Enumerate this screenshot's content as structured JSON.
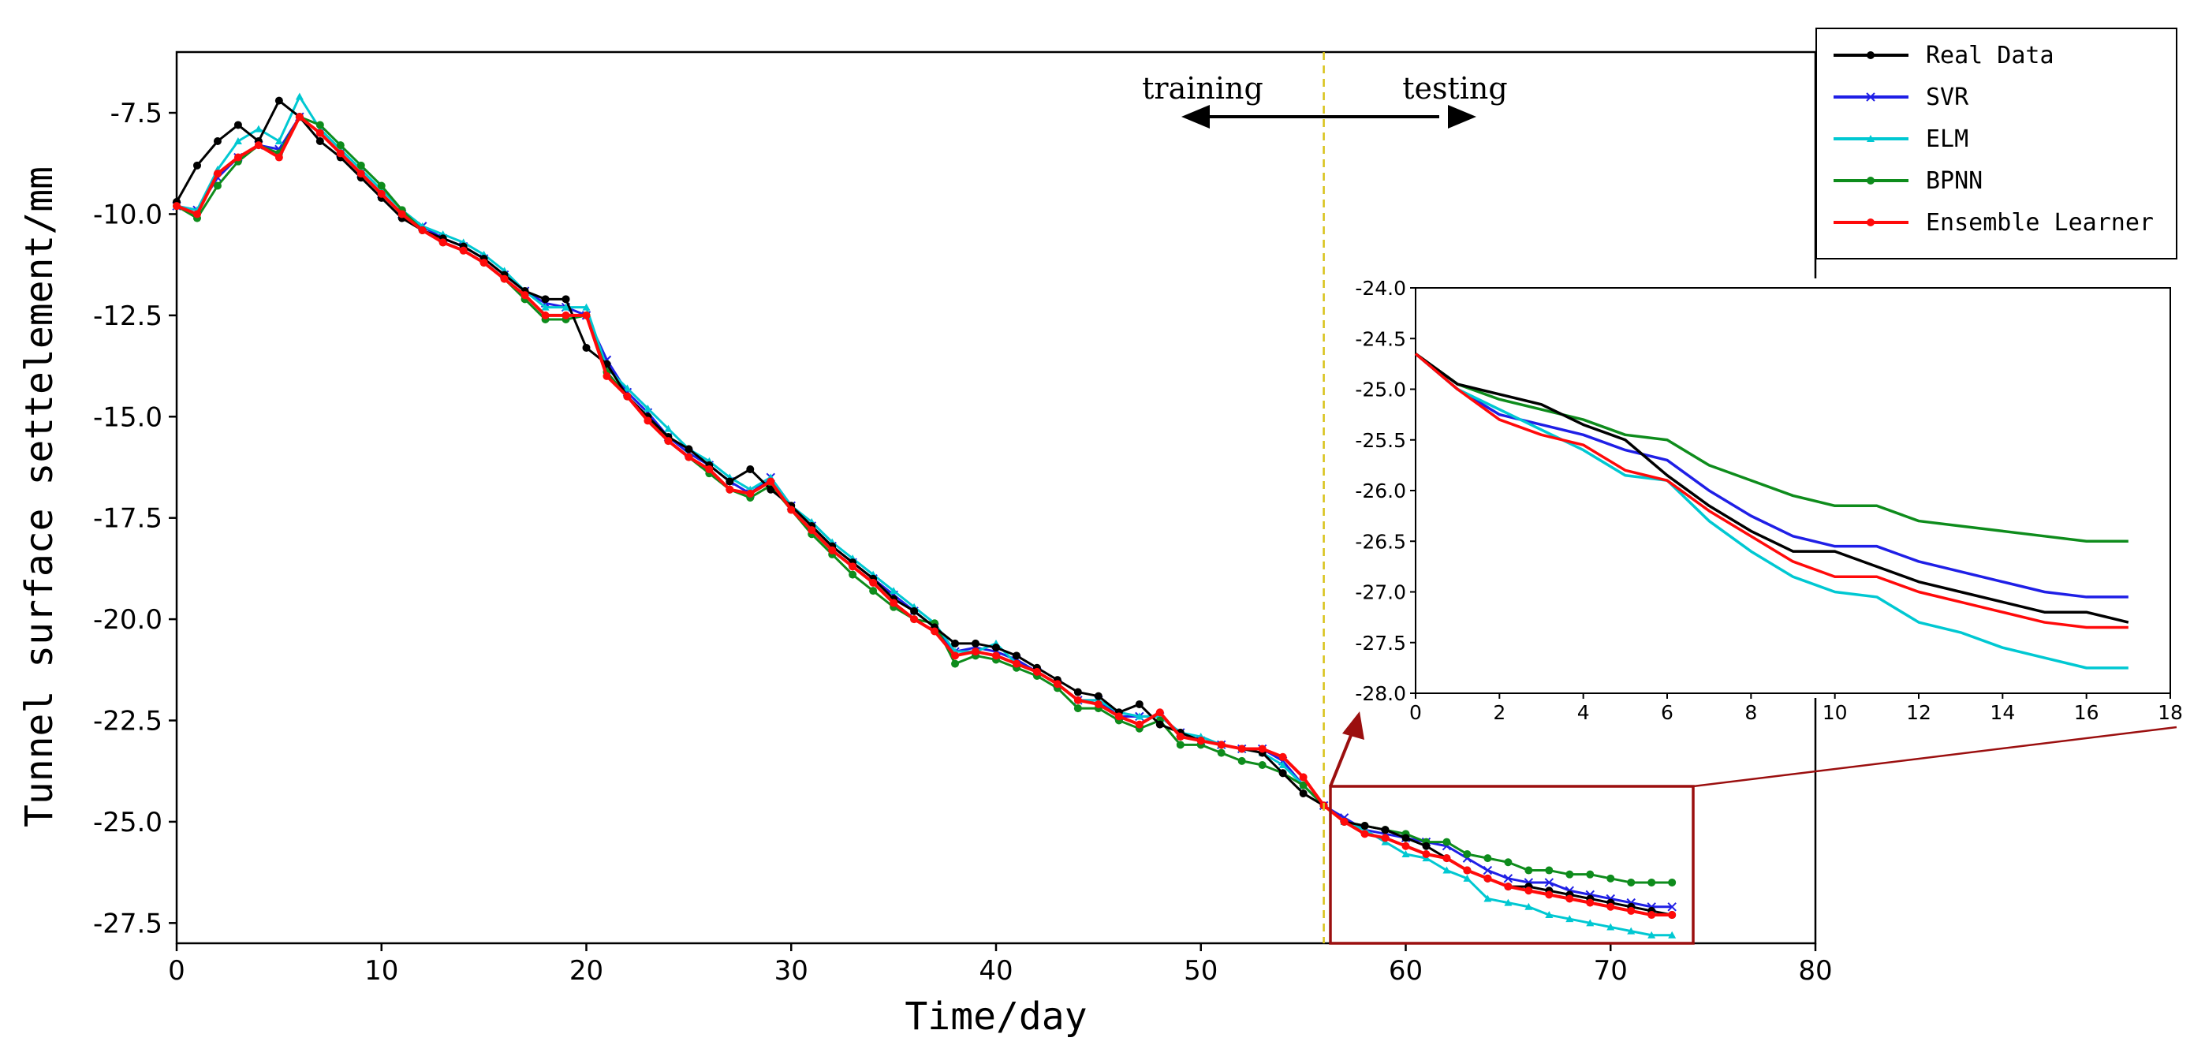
{
  "chart_data": [
    {
      "type": "line",
      "title": "",
      "xlabel": "Time/day",
      "ylabel": "Tunnel surface settelement/mm",
      "xlim": [
        0,
        80
      ],
      "ylim": [
        -28.0,
        -6.0
      ],
      "xticks": [
        "0",
        "10",
        "20",
        "30",
        "40",
        "50",
        "60",
        "70",
        "80"
      ],
      "yticks": [
        "-7.5",
        "-10.0",
        "-12.5",
        "-15.0",
        "-17.5",
        "-20.0",
        "-22.5",
        "-25.0",
        "-27.5"
      ],
      "grid": false,
      "legend_position": "top-right",
      "split": {
        "x": 56,
        "left_label": "training",
        "right_label": "testing"
      },
      "zoom_region": {
        "x": [
          56,
          74
        ],
        "y": [
          -28.0,
          -24.6
        ]
      },
      "x": [
        0,
        1,
        2,
        3,
        4,
        5,
        6,
        7,
        8,
        9,
        10,
        11,
        12,
        13,
        14,
        15,
        16,
        17,
        18,
        19,
        20,
        21,
        22,
        23,
        24,
        25,
        26,
        27,
        28,
        29,
        30,
        31,
        32,
        33,
        34,
        35,
        36,
        37,
        38,
        39,
        40,
        41,
        42,
        43,
        44,
        45,
        46,
        47,
        48,
        49,
        50,
        51,
        52,
        53,
        54,
        55,
        56,
        57,
        58,
        59,
        60,
        61,
        62,
        63,
        64,
        65,
        66,
        67,
        68,
        69,
        70,
        71,
        72,
        73
      ],
      "series": [
        {
          "name": "Real Data",
          "color": "#000000",
          "marker": "dot",
          "values": [
            -9.7,
            -8.8,
            -8.2,
            -7.8,
            -8.2,
            -7.2,
            -7.6,
            -8.2,
            -8.6,
            -9.1,
            -9.6,
            -10.1,
            -10.4,
            -10.6,
            -10.8,
            -11.1,
            -11.5,
            -11.9,
            -12.1,
            -12.1,
            -13.3,
            -13.7,
            -14.5,
            -15.0,
            -15.5,
            -15.8,
            -16.2,
            -16.6,
            -16.3,
            -16.8,
            -17.2,
            -17.7,
            -18.2,
            -18.6,
            -19.0,
            -19.5,
            -19.8,
            -20.2,
            -20.6,
            -20.6,
            -20.7,
            -20.9,
            -21.2,
            -21.5,
            -21.8,
            -21.9,
            -22.3,
            -22.1,
            -22.6,
            -22.8,
            -23.0,
            -23.1,
            -23.2,
            -23.3,
            -23.8,
            -24.3,
            -24.6,
            -25.0,
            -25.1,
            -25.2,
            -25.4,
            -25.6,
            -25.9,
            -26.2,
            -26.4,
            -26.6,
            -26.6,
            -26.7,
            -26.8,
            -26.9,
            -27.0,
            -27.1,
            -27.2,
            -27.3
          ]
        },
        {
          "name": "SVR",
          "color": "#1f1fe6",
          "marker": "x",
          "values": [
            -9.8,
            -9.9,
            -9.1,
            -8.6,
            -8.3,
            -8.4,
            -7.6,
            -8.0,
            -8.5,
            -9.0,
            -9.5,
            -10.0,
            -10.3,
            -10.6,
            -10.8,
            -11.1,
            -11.5,
            -11.9,
            -12.2,
            -12.3,
            -12.5,
            -13.6,
            -14.4,
            -14.9,
            -15.5,
            -15.9,
            -16.2,
            -16.6,
            -16.9,
            -16.5,
            -17.2,
            -17.7,
            -18.2,
            -18.6,
            -19.0,
            -19.4,
            -19.8,
            -20.2,
            -20.8,
            -20.7,
            -20.8,
            -21.0,
            -21.3,
            -21.6,
            -22.0,
            -22.0,
            -22.4,
            -22.4,
            -22.4,
            -22.8,
            -23.0,
            -23.1,
            -23.2,
            -23.2,
            -23.5,
            -24.1,
            -24.6,
            -24.9,
            -25.2,
            -25.3,
            -25.4,
            -25.5,
            -25.6,
            -25.9,
            -26.2,
            -26.4,
            -26.5,
            -26.5,
            -26.7,
            -26.8,
            -26.9,
            -27.0,
            -27.1,
            -27.1
          ]
        },
        {
          "name": "ELM",
          "color": "#00c8d2",
          "marker": "tri",
          "values": [
            -9.8,
            -9.9,
            -8.9,
            -8.2,
            -7.9,
            -8.2,
            -7.1,
            -7.9,
            -8.4,
            -8.9,
            -9.4,
            -9.9,
            -10.3,
            -10.5,
            -10.7,
            -11.0,
            -11.4,
            -11.9,
            -12.3,
            -12.3,
            -12.3,
            -13.8,
            -14.3,
            -14.8,
            -15.3,
            -15.8,
            -16.1,
            -16.5,
            -16.8,
            -16.5,
            -17.2,
            -17.6,
            -18.1,
            -18.5,
            -18.9,
            -19.3,
            -19.7,
            -20.1,
            -20.8,
            -20.8,
            -20.6,
            -21.1,
            -21.3,
            -21.6,
            -22.0,
            -22.0,
            -22.3,
            -22.4,
            -22.4,
            -22.8,
            -22.9,
            -23.1,
            -23.2,
            -23.3,
            -23.6,
            -24.1,
            -24.6,
            -25.0,
            -25.2,
            -25.5,
            -25.8,
            -25.9,
            -26.2,
            -26.4,
            -26.9,
            -27.0,
            -27.1,
            -27.3,
            -27.4,
            -27.5,
            -27.6,
            -27.7,
            -27.8,
            -27.8
          ]
        },
        {
          "name": "BPNN",
          "color": "#0e8c1c",
          "marker": "dot",
          "values": [
            -9.8,
            -10.1,
            -9.3,
            -8.7,
            -8.3,
            -8.5,
            -7.6,
            -7.8,
            -8.3,
            -8.8,
            -9.3,
            -9.9,
            -10.4,
            -10.7,
            -10.9,
            -11.2,
            -11.6,
            -12.1,
            -12.6,
            -12.6,
            -12.5,
            -13.9,
            -14.5,
            -15.0,
            -15.6,
            -16.0,
            -16.4,
            -16.8,
            -17.0,
            -16.7,
            -17.3,
            -17.9,
            -18.4,
            -18.9,
            -19.3,
            -19.7,
            -20.0,
            -20.1,
            -21.1,
            -20.9,
            -21.0,
            -21.2,
            -21.4,
            -21.7,
            -22.2,
            -22.2,
            -22.5,
            -22.7,
            -22.5,
            -23.1,
            -23.1,
            -23.3,
            -23.5,
            -23.6,
            -23.8,
            -24.1,
            -24.6,
            -25.0,
            -25.1,
            -25.2,
            -25.3,
            -25.5,
            -25.5,
            -25.8,
            -25.9,
            -26.0,
            -26.2,
            -26.2,
            -26.3,
            -26.3,
            -26.4,
            -26.5,
            -26.5,
            -26.5
          ]
        },
        {
          "name": "Ensemble Learner",
          "color": "#ff0a0a",
          "marker": "dot",
          "values": [
            -9.8,
            -10.0,
            -9.0,
            -8.6,
            -8.3,
            -8.6,
            -7.6,
            -8.0,
            -8.5,
            -9.0,
            -9.5,
            -10.0,
            -10.4,
            -10.7,
            -10.9,
            -11.2,
            -11.6,
            -12.0,
            -12.5,
            -12.5,
            -12.5,
            -14.0,
            -14.5,
            -15.1,
            -15.6,
            -16.0,
            -16.3,
            -16.8,
            -16.9,
            -16.6,
            -17.3,
            -17.8,
            -18.3,
            -18.7,
            -19.1,
            -19.6,
            -20.0,
            -20.3,
            -20.9,
            -20.8,
            -20.9,
            -21.1,
            -21.3,
            -21.6,
            -22.0,
            -22.1,
            -22.4,
            -22.6,
            -22.3,
            -22.9,
            -23.0,
            -23.1,
            -23.2,
            -23.2,
            -23.4,
            -23.9,
            -24.6,
            -25.0,
            -25.3,
            -25.4,
            -25.6,
            -25.8,
            -25.9,
            -26.2,
            -26.4,
            -26.6,
            -26.7,
            -26.8,
            -26.9,
            -27.0,
            -27.1,
            -27.2,
            -27.3,
            -27.3
          ]
        }
      ]
    },
    {
      "type": "line",
      "title": "",
      "xlabel": "",
      "ylabel": "",
      "xlim": [
        0,
        18
      ],
      "ylim": [
        -28.0,
        -24.0
      ],
      "xticks": [
        "0",
        "2",
        "4",
        "6",
        "8",
        "10",
        "12",
        "14",
        "16",
        "18"
      ],
      "yticks": [
        "-24.0",
        "-24.5",
        "-25.0",
        "-25.5",
        "-26.0",
        "-26.5",
        "-27.0",
        "-27.5",
        "-28.0"
      ],
      "grid": false,
      "x": [
        0,
        1,
        2,
        3,
        4,
        5,
        6,
        7,
        8,
        9,
        10,
        11,
        12,
        13,
        14,
        15,
        16,
        17
      ],
      "series": [
        {
          "name": "Real Data",
          "color": "#000000",
          "values": [
            -24.65,
            -24.95,
            -25.05,
            -25.15,
            -25.35,
            -25.5,
            -25.85,
            -26.15,
            -26.4,
            -26.6,
            -26.6,
            -26.75,
            -26.9,
            -27.0,
            -27.1,
            -27.2,
            -27.2,
            -27.3
          ]
        },
        {
          "name": "SVR",
          "color": "#1f1fe6",
          "values": [
            -24.65,
            -25.0,
            -25.25,
            -25.35,
            -25.45,
            -25.6,
            -25.7,
            -26.0,
            -26.25,
            -26.45,
            -26.55,
            -26.55,
            -26.7,
            -26.8,
            -26.9,
            -27.0,
            -27.05,
            -27.05
          ]
        },
        {
          "name": "ELM",
          "color": "#00c8d2",
          "values": [
            -24.65,
            -25.0,
            -25.2,
            -25.4,
            -25.6,
            -25.85,
            -25.9,
            -26.3,
            -26.6,
            -26.85,
            -27.0,
            -27.05,
            -27.3,
            -27.4,
            -27.55,
            -27.65,
            -27.75,
            -27.75
          ]
        },
        {
          "name": "BPNN",
          "color": "#0e8c1c",
          "values": [
            -24.65,
            -24.95,
            -25.1,
            -25.2,
            -25.3,
            -25.45,
            -25.5,
            -25.75,
            -25.9,
            -26.05,
            -26.15,
            -26.15,
            -26.3,
            -26.35,
            -26.4,
            -26.45,
            -26.5,
            -26.5
          ]
        },
        {
          "name": "Ensemble Learner",
          "color": "#ff0a0a",
          "values": [
            -24.65,
            -25.0,
            -25.3,
            -25.45,
            -25.55,
            -25.8,
            -25.9,
            -26.2,
            -26.45,
            -26.7,
            -26.85,
            -26.85,
            -27.0,
            -27.1,
            -27.2,
            -27.3,
            -27.35,
            -27.35
          ]
        }
      ]
    }
  ]
}
